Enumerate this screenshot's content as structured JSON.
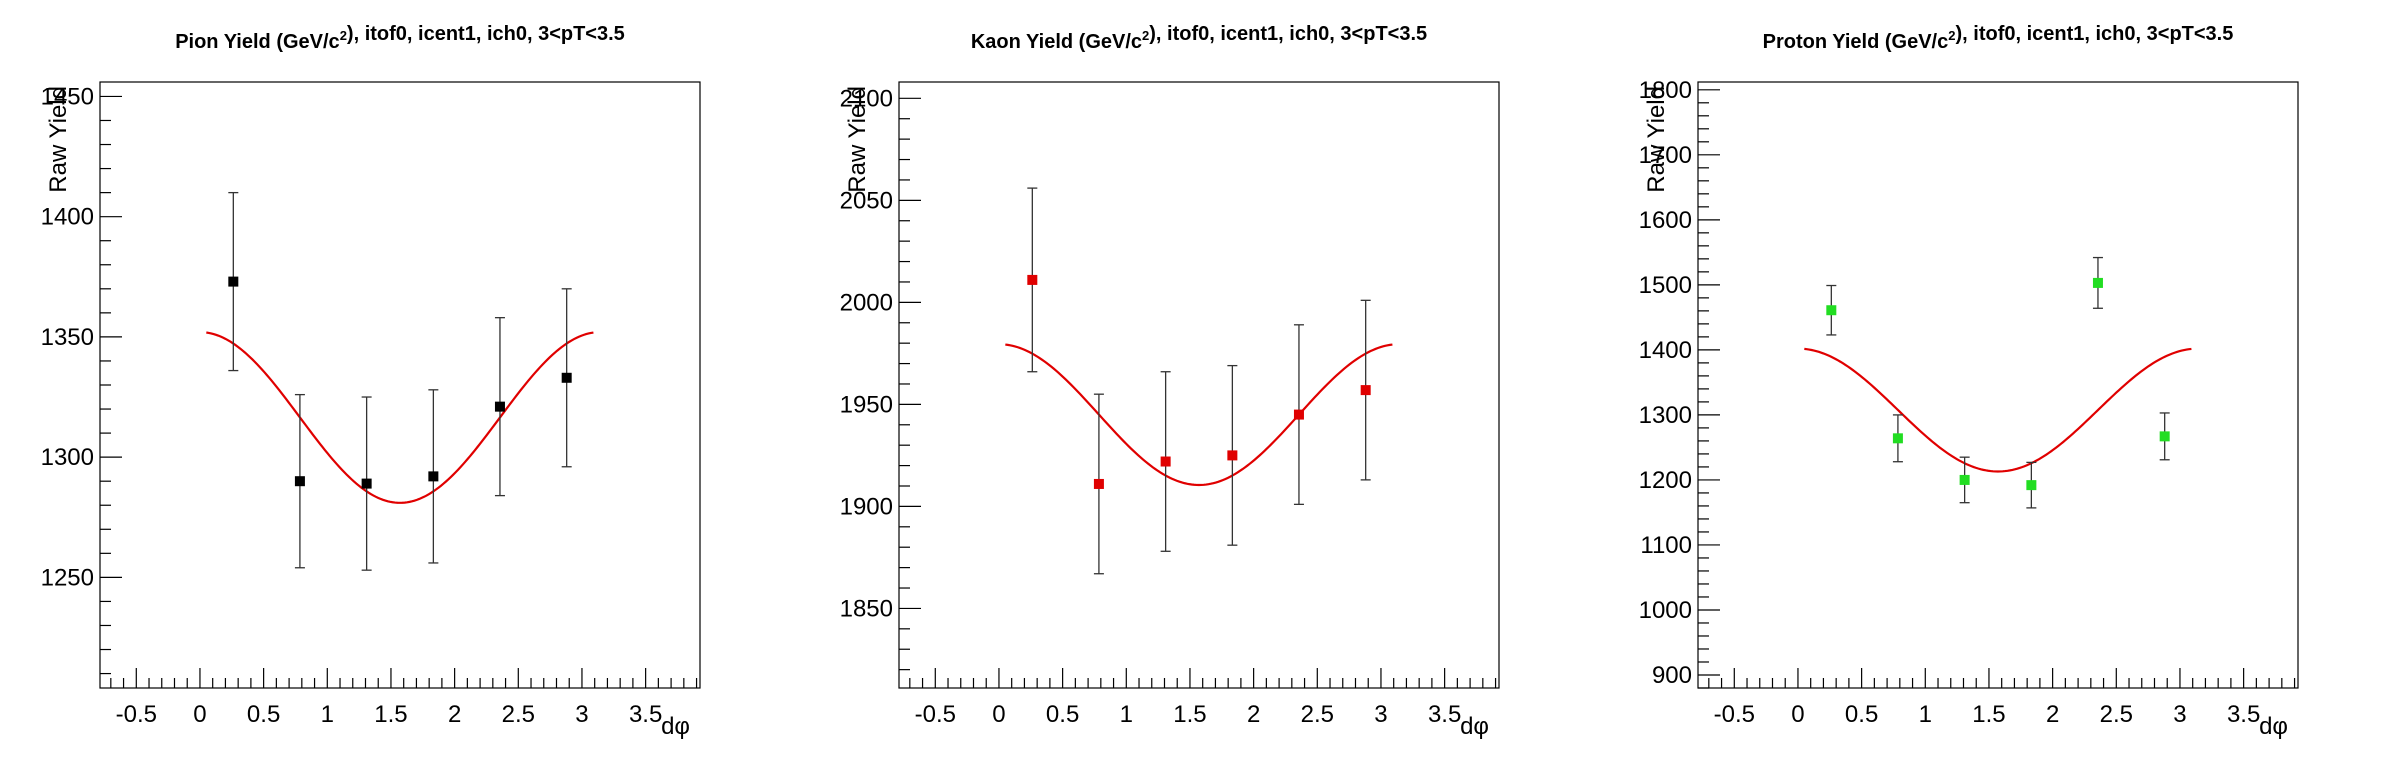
{
  "chart_data": [
    {
      "type": "scatter",
      "title": "Pion Yield (GeV/c²), itof0, icent1, ich0, 3<pT<3.5",
      "xlabel": "dφ",
      "ylabel": "Raw Yield",
      "xlim": [
        -0.785,
        3.927
      ],
      "ylim": [
        1204,
        1456
      ],
      "xticks": [
        -0.5,
        0,
        0.5,
        1,
        1.5,
        2,
        2.5,
        3,
        3.5
      ],
      "yticks": [
        1250,
        1300,
        1350,
        1400,
        1450
      ],
      "grid": false,
      "marker_color": "#000000",
      "fit_color": "#e00000",
      "points": [
        {
          "x": 0.262,
          "y": 1373,
          "err": 37
        },
        {
          "x": 0.785,
          "y": 1290,
          "err": 36
        },
        {
          "x": 1.309,
          "y": 1289,
          "err": 36
        },
        {
          "x": 1.833,
          "y": 1292,
          "err": 36
        },
        {
          "x": 2.356,
          "y": 1321,
          "err": 37
        },
        {
          "x": 2.88,
          "y": 1333,
          "err": 37
        }
      ],
      "fit": {
        "form": "A + B*cos(2x)",
        "A": 1316.5,
        "B": 35.5,
        "xmin": 0.05,
        "xmax": 3.09
      }
    },
    {
      "type": "scatter",
      "title": "Kaon Yield (GeV/c²), itof0, icent1, ich0, 3<pT<3.5",
      "xlabel": "dφ",
      "ylabel": "Raw Yield",
      "xlim": [
        -0.785,
        3.927
      ],
      "ylim": [
        1811,
        2108
      ],
      "xticks": [
        -0.5,
        0,
        0.5,
        1,
        1.5,
        2,
        2.5,
        3,
        3.5
      ],
      "yticks": [
        1850,
        1900,
        1950,
        2000,
        2050,
        2100
      ],
      "grid": false,
      "marker_color": "#e00000",
      "fit_color": "#e00000",
      "points": [
        {
          "x": 0.262,
          "y": 2011,
          "err": 45
        },
        {
          "x": 0.785,
          "y": 1911,
          "err": 44
        },
        {
          "x": 1.309,
          "y": 1922,
          "err": 44
        },
        {
          "x": 1.833,
          "y": 1925,
          "err": 44
        },
        {
          "x": 2.356,
          "y": 1945,
          "err": 44
        },
        {
          "x": 2.88,
          "y": 1957,
          "err": 44
        }
      ],
      "fit": {
        "form": "A + B*cos(2x)",
        "A": 1945,
        "B": 34.5,
        "xmin": 0.05,
        "xmax": 3.09
      }
    },
    {
      "type": "scatter",
      "title": "Proton Yield (GeV/c²), itof0, icent1, ich0, 3<pT<3.5",
      "xlabel": "dφ",
      "ylabel": "Raw Yield",
      "xlim": [
        -0.785,
        3.927
      ],
      "ylim": [
        880,
        1812
      ],
      "xticks": [
        -0.5,
        0,
        0.5,
        1,
        1.5,
        2,
        2.5,
        3,
        3.5
      ],
      "yticks": [
        900,
        1000,
        1100,
        1200,
        1300,
        1400,
        1500,
        1600,
        1700,
        1800
      ],
      "grid": false,
      "marker_color": "#22dd22",
      "fit_color": "#e00000",
      "points": [
        {
          "x": 0.262,
          "y": 1461,
          "err": 38
        },
        {
          "x": 0.785,
          "y": 1264,
          "err": 36
        },
        {
          "x": 1.309,
          "y": 1200,
          "err": 35
        },
        {
          "x": 1.833,
          "y": 1192,
          "err": 35
        },
        {
          "x": 2.356,
          "y": 1503,
          "err": 39
        },
        {
          "x": 2.88,
          "y": 1267,
          "err": 36
        }
      ],
      "fit": {
        "form": "A + B*cos(2x)",
        "A": 1307.5,
        "B": 94.5,
        "xmin": 0.05,
        "xmax": 3.09
      }
    }
  ]
}
